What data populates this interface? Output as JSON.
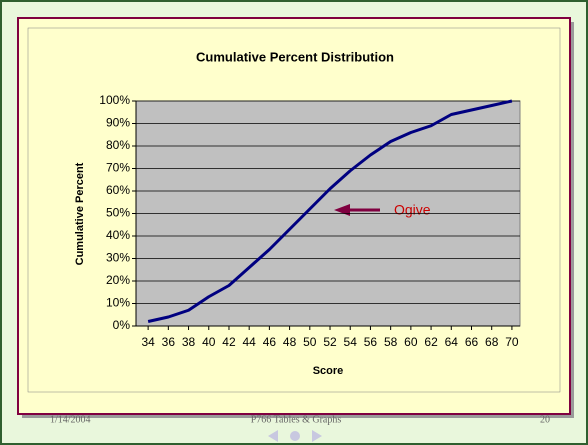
{
  "chart_data": {
    "type": "line",
    "title": "Cumulative Percent Distribution",
    "xlabel": "Score",
    "ylabel": "Cumulative Percent",
    "x": [
      34,
      36,
      38,
      40,
      42,
      44,
      46,
      48,
      50,
      52,
      54,
      56,
      58,
      60,
      62,
      64,
      66,
      68,
      70
    ],
    "series": [
      {
        "name": "Cumulative Percent",
        "color": "#000080",
        "values": [
          2,
          4,
          7,
          13,
          18,
          26,
          34,
          43,
          52,
          61,
          69,
          76,
          82,
          86,
          89,
          94,
          96,
          98,
          100
        ]
      }
    ],
    "xlim": [
      32.8,
      70.8
    ],
    "xticks": [
      34,
      36,
      38,
      40,
      42,
      44,
      46,
      48,
      50,
      52,
      54,
      56,
      58,
      60,
      62,
      64,
      66,
      68,
      70
    ],
    "ylim": [
      0,
      100
    ],
    "yticks": [
      {
        "value": 0,
        "label": "0%"
      },
      {
        "value": 10,
        "label": "10%"
      },
      {
        "value": 20,
        "label": "20%"
      },
      {
        "value": 30,
        "label": "30%"
      },
      {
        "value": 40,
        "label": "40%"
      },
      {
        "value": 50,
        "label": "50%"
      },
      {
        "value": 60,
        "label": "60%"
      },
      {
        "value": 70,
        "label": "70%"
      },
      {
        "value": 80,
        "label": "80%"
      },
      {
        "value": 90,
        "label": "90%"
      },
      {
        "value": 100,
        "label": "100%"
      }
    ],
    "grid": true,
    "annotation": "Ogive"
  },
  "footer": {
    "date": "1/14/2004",
    "course": "P766 Tables & Graphs",
    "page": "20"
  }
}
